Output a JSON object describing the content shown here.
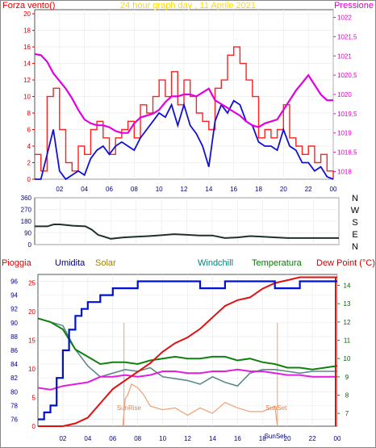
{
  "chart_data": [
    {
      "type": "line",
      "title": "24 hour graph day , 11 Aprile 2021",
      "ylabel_left": "Forza vento()",
      "ylabel_right": "Pressione",
      "x_ticks": [
        "02",
        "04",
        "06",
        "08",
        "10",
        "12",
        "14",
        "16",
        "18",
        "20",
        "22",
        "00"
      ],
      "x_range": [
        0,
        24
      ],
      "ylim_left": [
        0,
        20.5
      ],
      "y_ticks_left": [
        "0",
        "2",
        "4",
        "6",
        "8",
        "10",
        "12",
        "14",
        "16",
        "18",
        "20"
      ],
      "ylim_right": [
        1017.8,
        1022.2
      ],
      "y_ticks_right": [
        "1018",
        "1018,5",
        "1019",
        "1019,5",
        "1020",
        "1020,5",
        "1021",
        "1021,5",
        "1022"
      ],
      "colors": {
        "gust": "#ff2020",
        "wind": "#1010d8",
        "pressure": "#e000e0",
        "title": "#ffd800",
        "left_axis": "#e00000",
        "right_axis": "#e000c8"
      },
      "series": [
        {
          "name": "",
          "axis": "left",
          "x": [
            0,
            0.5,
            1,
            1.5,
            2,
            2.5,
            3,
            3.5,
            4,
            4.5,
            5,
            5.5,
            6,
            6.5,
            7,
            7.5,
            8,
            8.5,
            9,
            9.5,
            10,
            10.5,
            11,
            11.5,
            12,
            12.5,
            13,
            13.5,
            14,
            14.5,
            15,
            15.5,
            16,
            16.5,
            17,
            17.5,
            18,
            18.5,
            19,
            19.5,
            20,
            20.5,
            21,
            21.5,
            22,
            22.5,
            23,
            23.5,
            24
          ],
          "y": [
            3,
            1,
            10,
            11,
            6,
            2,
            1,
            4,
            3,
            6,
            7,
            5,
            3,
            5,
            6,
            7,
            5,
            9,
            8,
            10,
            12,
            10,
            13,
            9,
            12,
            10,
            8,
            7,
            6,
            11,
            12,
            15,
            16,
            14,
            12,
            10,
            5,
            6,
            5,
            6,
            9,
            5,
            4,
            3,
            4,
            2,
            3,
            1,
            0
          ]
        },
        {
          "name": "",
          "axis": "left",
          "x": [
            0,
            0.5,
            1,
            1.5,
            2,
            2.5,
            3,
            3.5,
            4,
            4.5,
            5,
            5.5,
            6,
            6.5,
            7,
            7.5,
            8,
            8.5,
            9,
            9.5,
            10,
            10.5,
            11,
            11.5,
            12,
            12.5,
            13,
            13.5,
            14,
            14.5,
            15,
            15.5,
            16,
            16.5,
            17,
            17.5,
            18,
            18.5,
            19,
            19.5,
            20,
            20.5,
            21,
            21.5,
            22,
            22.5,
            23,
            23.5,
            24
          ],
          "y": [
            0,
            0,
            3,
            6,
            1,
            0,
            0.5,
            1,
            0.5,
            2.5,
            3.5,
            4,
            3,
            4,
            4.5,
            4,
            3.5,
            5,
            6,
            7,
            8,
            7.5,
            9,
            6.5,
            9,
            6.5,
            5.5,
            4,
            1.5,
            7,
            9,
            8,
            9.5,
            9,
            7,
            6.5,
            4.5,
            4,
            4,
            3.5,
            6,
            4,
            3.5,
            2,
            2,
            1,
            1.5,
            0.3,
            0
          ]
        },
        {
          "name": "",
          "axis": "right",
          "x": [
            0,
            0.5,
            1,
            1.5,
            2,
            2.5,
            3,
            3.5,
            4,
            4.5,
            5,
            5.5,
            6,
            6.5,
            7,
            7.5,
            8,
            8.5,
            9,
            9.5,
            10,
            10.5,
            11,
            11.5,
            12,
            12.5,
            13,
            13.5,
            14,
            14.5,
            15,
            15.5,
            16,
            16.5,
            17,
            17.5,
            18,
            18.5,
            19,
            19.5,
            20,
            20.5,
            21,
            21.5,
            22,
            22.5,
            23,
            23.5,
            24
          ],
          "y": [
            1021.05,
            1021.02,
            1020.85,
            1020.55,
            1020.35,
            1020.15,
            1019.9,
            1019.6,
            1019.35,
            1019.25,
            1019.2,
            1019.2,
            1019.15,
            1019.05,
            1019.0,
            1019.0,
            1019.25,
            1019.4,
            1019.45,
            1019.5,
            1019.6,
            1019.8,
            1019.95,
            1019.95,
            1020.0,
            1020.0,
            1019.95,
            1020.05,
            1020.15,
            1019.85,
            1019.75,
            1019.65,
            1019.55,
            1019.45,
            1019.3,
            1019.2,
            1019.15,
            1019.25,
            1019.3,
            1019.35,
            1019.6,
            1019.85,
            1020.1,
            1020.3,
            1020.5,
            1020.25,
            1020.0,
            1019.85,
            1019.85
          ]
        }
      ]
    },
    {
      "type": "line",
      "title": "",
      "y_ticks": [
        "360",
        "270",
        "180",
        "90",
        "0"
      ],
      "ylim": [
        0,
        360
      ],
      "compass_labels": [
        "N",
        "W",
        "S",
        "E",
        "N"
      ],
      "x_ticks": [
        "02",
        "04",
        "06",
        "08",
        "10",
        "12",
        "14",
        "16",
        "18",
        "20",
        "22",
        "00"
      ],
      "x_range": [
        0,
        24
      ],
      "series": [
        {
          "name": "",
          "x": [
            0,
            1,
            1.5,
            2,
            3,
            4,
            4.5,
            5,
            6,
            7,
            8,
            9,
            10,
            11,
            12,
            13,
            14,
            15,
            16,
            17,
            18,
            19,
            20,
            21,
            22,
            23,
            24
          ],
          "y": [
            140,
            140,
            155,
            155,
            145,
            140,
            115,
            75,
            45,
            55,
            60,
            65,
            72,
            80,
            75,
            70,
            70,
            50,
            55,
            65,
            60,
            55,
            50,
            50,
            50,
            50,
            50
          ]
        }
      ]
    },
    {
      "type": "line",
      "title": "",
      "legend": [
        "Pioggia",
        "Umidita",
        "Solar",
        "Windchill",
        "Temperatura",
        "Dew Point (°C)"
      ],
      "legend_colors": [
        "#e00000",
        "#000080",
        "#a08000",
        "#008080",
        "#008000",
        "#d00000"
      ],
      "x_ticks": [
        "02",
        "04",
        "06",
        "08",
        "10",
        "12",
        "14",
        "16",
        "18",
        "20",
        "22",
        "00"
      ],
      "x_range": [
        0,
        24
      ],
      "y_ticks_left_rain": [
        "0",
        "5",
        "10",
        "15",
        "20",
        "25"
      ],
      "ylim_left_rain": [
        0,
        26.5
      ],
      "y_ticks_humidity": [
        "76",
        "78",
        "80",
        "82",
        "84",
        "86",
        "88",
        "90",
        "92",
        "94",
        "96"
      ],
      "ylim_humidity": [
        75,
        97
      ],
      "y_ticks_right_temp": [
        "7",
        "8",
        "9",
        "10",
        "11",
        "12",
        "13",
        "14"
      ],
      "ylim_right_temp": [
        6.3,
        14.6
      ],
      "annotations": [
        "SunRise",
        "SunSet",
        "SunSet"
      ],
      "series": [
        {
          "name": "Pioggia",
          "axis": "rain",
          "x": [
            0,
            2,
            3,
            4,
            5,
            6,
            7,
            8,
            9,
            10,
            11,
            12,
            13,
            14,
            15,
            16,
            17,
            18,
            19,
            20,
            21,
            22,
            23,
            24
          ],
          "y": [
            0,
            0,
            0.5,
            1.5,
            4,
            6.5,
            8,
            9.5,
            11,
            13,
            14.5,
            15.5,
            17,
            19,
            21,
            22,
            22.5,
            24,
            25,
            25.5,
            26,
            26,
            26,
            26
          ]
        },
        {
          "name": "Umidita",
          "axis": "humidity",
          "x": [
            0,
            0.5,
            1,
            1.5,
            2,
            2.5,
            3,
            3.5,
            4,
            5,
            6,
            7,
            8,
            9,
            10,
            11,
            12,
            13,
            14,
            15,
            16,
            17,
            18,
            19,
            20,
            21,
            22,
            23,
            24
          ],
          "y": [
            76,
            77,
            78,
            82,
            86,
            89,
            91,
            92,
            93,
            94,
            95,
            95,
            96,
            96,
            96,
            96,
            96,
            95,
            95,
            96,
            96,
            96,
            96,
            95,
            95,
            96,
            96,
            96,
            96
          ]
        },
        {
          "name": "Solar",
          "axis": "temp",
          "x": [
            6.8,
            7,
            7.2,
            7.5,
            8,
            8.5,
            9,
            10,
            11,
            12,
            13,
            14,
            15,
            16,
            17,
            18,
            19,
            19.2
          ],
          "y": [
            6.3,
            7.8,
            8.0,
            8.6,
            8.4,
            8.0,
            7.4,
            7.2,
            7.3,
            6.9,
            7.3,
            7.0,
            7.6,
            7.3,
            7.1,
            7.1,
            7.4,
            6.3
          ]
        },
        {
          "name": "Windchill",
          "axis": "temp",
          "x": [
            0,
            1,
            2,
            3,
            4,
            5,
            6,
            7,
            8,
            9,
            10,
            11,
            12,
            13,
            14,
            15,
            16,
            17,
            18,
            19,
            20,
            21,
            22,
            23,
            24
          ],
          "y": [
            12.2,
            12.0,
            11.8,
            10.5,
            9.6,
            9.0,
            9.2,
            9.4,
            9.3,
            9.5,
            9.0,
            8.9,
            8.8,
            8.6,
            9.0,
            8.7,
            8.5,
            9.2,
            9.4,
            9.4,
            9.3,
            9.2,
            9.3,
            9.3,
            9.3
          ]
        },
        {
          "name": "Temperatura",
          "axis": "temp",
          "x": [
            0,
            1,
            2,
            3,
            4,
            5,
            6,
            7,
            8,
            9,
            10,
            11,
            12,
            13,
            14,
            15,
            16,
            17,
            18,
            19,
            20,
            21,
            22,
            23,
            24
          ],
          "y": [
            12.2,
            12.0,
            11.6,
            10.5,
            10.1,
            9.7,
            9.8,
            9.8,
            9.7,
            9.9,
            10.0,
            10.1,
            10.0,
            10.0,
            10.1,
            10.1,
            9.9,
            10.0,
            9.8,
            9.7,
            9.5,
            9.5,
            9.4,
            9.5,
            9.6
          ]
        },
        {
          "name": "Dew Point (°C)",
          "axis": "temp",
          "x": [
            0,
            1,
            2,
            3,
            4,
            5,
            6,
            7,
            8,
            9,
            10,
            11,
            12,
            13,
            14,
            15,
            16,
            17,
            18,
            19,
            20,
            21,
            22,
            23,
            24
          ],
          "y": [
            8.4,
            8.3,
            8.5,
            8.6,
            8.7,
            9.0,
            9.0,
            9.1,
            9.0,
            9.1,
            9.3,
            9.3,
            9.2,
            9.2,
            9.3,
            9.3,
            9.4,
            9.3,
            9.3,
            9.2,
            9.1,
            9.1,
            9.0,
            9.0,
            9.0
          ]
        }
      ]
    }
  ]
}
